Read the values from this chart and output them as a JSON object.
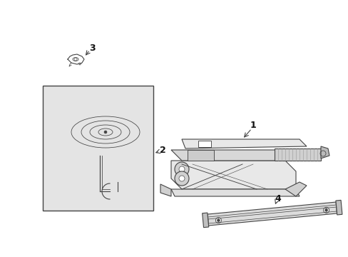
{
  "background_color": "#ffffff",
  "line_color": "#444444",
  "light_line_color": "#999999",
  "label_color": "#111111",
  "box_bg_color": "#e4e4e4",
  "fig_width": 4.89,
  "fig_height": 3.6,
  "dpi": 100
}
